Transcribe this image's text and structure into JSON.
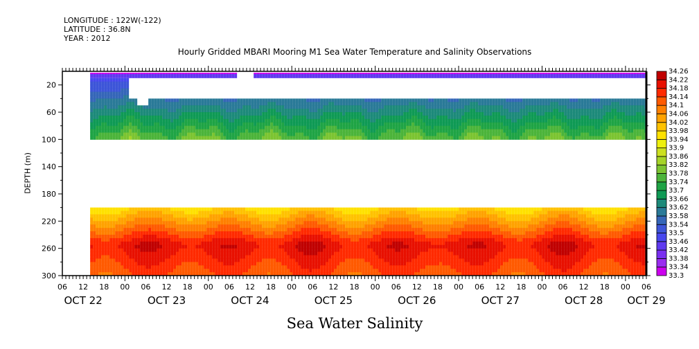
{
  "header": {
    "longitude": "LONGITUDE : 122W(-122)",
    "latitude": "LATITUDE : 36.8N",
    "year": "YEAR : 2012"
  },
  "chart_data": {
    "type": "heatmap",
    "title": "Hourly Gridded MBARI Mooring M1 Sea Water Temperature and Salinity Observations",
    "xlabel": "Sea Water Salinity",
    "ylabel": "DEPTH (m)",
    "x_range_hours_from_oct22_00": [
      6,
      174
    ],
    "data_start_hour": 14,
    "ylim": [
      300,
      0
    ],
    "y_ticks": [
      "20",
      "60",
      "100",
      "140",
      "180",
      "220",
      "260",
      "300"
    ],
    "y_tick_values": [
      20,
      60,
      100,
      140,
      180,
      220,
      260,
      300
    ],
    "x_hour_ticks": [
      "06",
      "12",
      "18",
      "00",
      "06",
      "12",
      "18",
      "00",
      "06",
      "12",
      "18",
      "00",
      "06",
      "12",
      "18",
      "00",
      "06",
      "12",
      "18",
      "00",
      "06",
      "12",
      "18",
      "00",
      "06",
      "12",
      "18",
      "00",
      "06"
    ],
    "x_hour_values": [
      6,
      12,
      18,
      24,
      30,
      36,
      42,
      48,
      54,
      60,
      66,
      72,
      78,
      84,
      90,
      96,
      102,
      108,
      114,
      120,
      126,
      132,
      138,
      144,
      150,
      156,
      162,
      168,
      174
    ],
    "x_date_labels": [
      "OCT 22",
      "OCT 23",
      "OCT 24",
      "OCT 25",
      "OCT 26",
      "OCT 27",
      "OCT 28",
      "OCT 29"
    ],
    "x_date_centers": [
      12,
      36,
      60,
      84,
      108,
      132,
      156,
      174
    ],
    "colorbar": {
      "levels": [
        33.3,
        33.34,
        33.38,
        33.42,
        33.46,
        33.5,
        33.54,
        33.58,
        33.62,
        33.66,
        33.7,
        33.74,
        33.78,
        33.82,
        33.86,
        33.9,
        33.94,
        33.98,
        34.02,
        34.06,
        34.1,
        34.14,
        34.18,
        34.22,
        34.26
      ],
      "labels": [
        "33.3",
        "33.34",
        "33.38",
        "33.42",
        "33.46",
        "33.5",
        "33.54",
        "33.58",
        "33.62",
        "33.66",
        "33.7",
        "33.74",
        "33.78",
        "33.82",
        "33.86",
        "33.9",
        "33.94",
        "33.98",
        "34.02",
        "34.06",
        "34.1",
        "34.14",
        "34.18",
        "34.22",
        "34.26"
      ],
      "colors": [
        "#cc00ee",
        "#9a2cf0",
        "#7a2ff0",
        "#5f3af0",
        "#4848ee",
        "#3d55d8",
        "#3566b8",
        "#2a7a98",
        "#1d8a7a",
        "#0f9a55",
        "#1fa445",
        "#4cb43a",
        "#7cc431",
        "#a6d428",
        "#cce020",
        "#eef00e",
        "#ffe100",
        "#ffc200",
        "#ffa200",
        "#ff8000",
        "#ff5a00",
        "#ff2a00",
        "#e81000",
        "#c00000"
      ]
    },
    "bands": [
      {
        "name": "upper",
        "depth_range": [
          2,
          10
        ],
        "typical_salinity": 33.4,
        "gaps_hours": [
          [
            56,
            61
          ]
        ]
      },
      {
        "name": "middle",
        "depth_range": [
          40,
          100
        ],
        "typical_salinity_top": 33.52,
        "typical_salinity_bottom": 33.74,
        "gaps": [
          {
            "hours": [
              27,
              30
            ],
            "depth": [
              40,
              50
            ]
          }
        ]
      },
      {
        "name": "deep",
        "depth_range": [
          200,
          300
        ],
        "typical_salinity_top": 33.98,
        "core_depth": 255,
        "core_salinity": 34.22,
        "typical_salinity_bottom": 34.14
      }
    ],
    "missing_data": [
      {
        "depth_range": [
          10,
          40
        ],
        "hours": [
          25,
          174
        ]
      },
      {
        "depth_range": [
          100,
          200
        ],
        "hours": [
          14,
          174
        ]
      }
    ]
  }
}
